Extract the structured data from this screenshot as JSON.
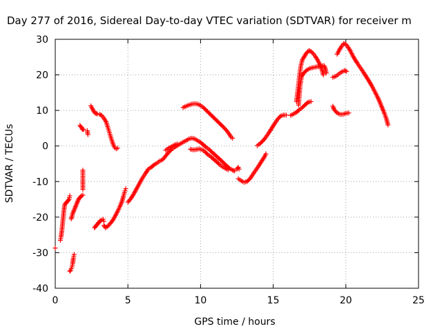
{
  "chart_data": {
    "type": "scatter",
    "title": "Day 277 of 2016, Sidereal Day-to-day VTEC variation (SDTVAR) for receiver m",
    "xlabel": "GPS time / hours",
    "ylabel": "SDTVAR / TECUs",
    "xlim": [
      0,
      25
    ],
    "ylim": [
      -40,
      30
    ],
    "xticks": [
      "0",
      "5",
      "10",
      "15",
      "20",
      "25"
    ],
    "yticks": [
      "-40",
      "-30",
      "-20",
      "-10",
      "0",
      "10",
      "20",
      "30"
    ],
    "grid": true,
    "marker": "plus",
    "color": "#ff0000",
    "segments": [
      [
        [
          0.0,
          -28.7
        ]
      ],
      [
        [
          0.35,
          -26.5
        ],
        [
          0.4,
          -25.5
        ],
        [
          0.45,
          -24
        ],
        [
          0.5,
          -22
        ],
        [
          0.55,
          -20
        ],
        [
          0.6,
          -18
        ],
        [
          0.65,
          -16.5
        ],
        [
          0.75,
          -16
        ],
        [
          0.85,
          -15.5
        ],
        [
          0.95,
          -15
        ],
        [
          1.0,
          -14
        ]
      ],
      [
        [
          1.0,
          -35.2
        ],
        [
          1.05,
          -35
        ],
        [
          1.1,
          -34.5
        ],
        [
          1.15,
          -34
        ],
        [
          1.2,
          -33
        ],
        [
          1.25,
          -31.5
        ],
        [
          1.3,
          -30.5
        ]
      ],
      [
        [
          1.1,
          -20.5
        ],
        [
          1.15,
          -19.8
        ],
        [
          1.2,
          -19
        ],
        [
          1.3,
          -18
        ],
        [
          1.4,
          -17
        ],
        [
          1.5,
          -16
        ],
        [
          1.6,
          -15
        ],
        [
          1.7,
          -14.5
        ],
        [
          1.8,
          -14
        ],
        [
          1.9,
          -13.8
        ]
      ],
      [
        [
          1.9,
          -12.2
        ],
        [
          1.9,
          -9.8
        ],
        [
          1.9,
          -6.8
        ]
      ],
      [
        [
          1.7,
          5.8
        ],
        [
          1.75,
          5.5
        ],
        [
          1.8,
          5.2
        ],
        [
          1.85,
          4.8
        ],
        [
          1.9,
          4.6
        ],
        [
          1.95,
          4.7
        ]
      ],
      [
        [
          2.2,
          4.3
        ],
        [
          2.25,
          3.2
        ]
      ],
      [
        [
          2.45,
          11.3
        ],
        [
          2.55,
          10.5
        ],
        [
          2.65,
          9.8
        ],
        [
          2.75,
          9.2
        ],
        [
          2.9,
          9.0
        ],
        [
          3.05,
          8.9
        ],
        [
          3.2,
          8.6
        ],
        [
          3.35,
          7.8
        ],
        [
          3.5,
          6.8
        ],
        [
          3.6,
          5.5
        ],
        [
          3.7,
          4.2
        ],
        [
          3.8,
          2.8
        ],
        [
          3.9,
          1.5
        ],
        [
          4.0,
          0.3
        ],
        [
          4.1,
          -0.5
        ],
        [
          4.2,
          -0.8
        ],
        [
          4.3,
          -0.6
        ]
      ],
      [
        [
          2.7,
          -23
        ],
        [
          2.8,
          -22.5
        ],
        [
          2.9,
          -22
        ],
        [
          3.0,
          -21.5
        ],
        [
          3.1,
          -21
        ],
        [
          3.2,
          -20.8
        ],
        [
          3.3,
          -20.6
        ],
        [
          3.35,
          -21.2
        ]
      ],
      [
        [
          3.35,
          -22.3
        ],
        [
          3.45,
          -23
        ],
        [
          3.55,
          -22.8
        ],
        [
          3.7,
          -22.2
        ],
        [
          3.85,
          -21.5
        ],
        [
          4.0,
          -20.6
        ],
        [
          4.15,
          -19.5
        ],
        [
          4.3,
          -18.3
        ],
        [
          4.45,
          -17
        ],
        [
          4.6,
          -15.5
        ],
        [
          4.7,
          -14
        ],
        [
          4.8,
          -12.6
        ],
        [
          4.85,
          -12
        ]
      ],
      [
        [
          5.0,
          -15.8
        ],
        [
          5.2,
          -14.8
        ],
        [
          5.4,
          -13.5
        ],
        [
          5.6,
          -12
        ],
        [
          5.8,
          -10.5
        ],
        [
          6.0,
          -9
        ],
        [
          6.2,
          -7.8
        ],
        [
          6.4,
          -6.5
        ],
        [
          6.6,
          -6
        ],
        [
          6.8,
          -5.3
        ],
        [
          7.0,
          -4.8
        ],
        [
          7.2,
          -4.2
        ],
        [
          7.4,
          -3.8
        ],
        [
          7.6,
          -2.8
        ],
        [
          7.8,
          -1.8
        ],
        [
          8.0,
          -1.0
        ],
        [
          8.2,
          -0.4
        ],
        [
          8.4,
          0.1
        ],
        [
          8.6,
          0.6
        ],
        [
          8.8,
          1.1
        ],
        [
          9.0,
          1.5
        ],
        [
          9.2,
          2.0
        ],
        [
          9.4,
          2.2
        ],
        [
          9.6,
          2.0
        ],
        [
          9.8,
          1.5
        ],
        [
          10.0,
          1.0
        ],
        [
          10.2,
          0.3
        ],
        [
          10.4,
          -0.4
        ],
        [
          10.6,
          -1.0
        ],
        [
          10.8,
          -1.8
        ],
        [
          11.0,
          -2.5
        ],
        [
          11.2,
          -3.3
        ],
        [
          11.4,
          -4.0
        ],
        [
          11.6,
          -4.8
        ],
        [
          11.8,
          -5.6
        ],
        [
          12.0,
          -6.3
        ],
        [
          12.2,
          -6.8
        ],
        [
          12.35,
          -7.0
        ]
      ],
      [
        [
          7.6,
          -1.2
        ],
        [
          7.8,
          -0.6
        ],
        [
          8.0,
          -0.2
        ],
        [
          8.2,
          0.3
        ],
        [
          8.4,
          0.6
        ]
      ],
      [
        [
          9.3,
          -0.9
        ],
        [
          9.5,
          -1.1
        ],
        [
          9.7,
          -1.0
        ],
        [
          9.9,
          -0.8
        ],
        [
          10.1,
          -1.0
        ],
        [
          10.3,
          -1.6
        ],
        [
          10.5,
          -2.4
        ],
        [
          10.7,
          -3.0
        ],
        [
          10.9,
          -3.7
        ],
        [
          11.1,
          -4.4
        ],
        [
          11.3,
          -5.2
        ],
        [
          11.5,
          -5.8
        ],
        [
          11.7,
          -6.3
        ],
        [
          11.9,
          -6.7
        ]
      ],
      [
        [
          12.5,
          -6.5
        ],
        [
          12.6,
          -6.0
        ],
        [
          12.65,
          -6.5
        ]
      ],
      [
        [
          8.8,
          10.8
        ],
        [
          9.0,
          11.2
        ],
        [
          9.2,
          11.5
        ],
        [
          9.4,
          11.8
        ],
        [
          9.6,
          11.9
        ],
        [
          9.8,
          11.8
        ],
        [
          10.0,
          11.4
        ],
        [
          10.2,
          10.8
        ],
        [
          10.4,
          10.0
        ],
        [
          10.6,
          9.2
        ],
        [
          10.8,
          8.4
        ],
        [
          11.0,
          7.6
        ],
        [
          11.2,
          6.8
        ],
        [
          11.4,
          6.0
        ],
        [
          11.6,
          5.2
        ],
        [
          11.8,
          4.3
        ],
        [
          12.0,
          3.2
        ],
        [
          12.1,
          2.5
        ],
        [
          12.2,
          2.2
        ]
      ],
      [
        [
          12.6,
          -9.2
        ],
        [
          12.8,
          -9.8
        ],
        [
          13.0,
          -10.2
        ],
        [
          13.2,
          -10.0
        ],
        [
          13.4,
          -9.2
        ],
        [
          13.6,
          -8.0
        ],
        [
          13.8,
          -6.8
        ],
        [
          14.0,
          -5.6
        ],
        [
          14.2,
          -4.3
        ],
        [
          14.4,
          -3.0
        ],
        [
          14.5,
          -2.2
        ]
      ],
      [
        [
          13.9,
          0.1
        ],
        [
          14.1,
          0.7
        ],
        [
          14.3,
          1.5
        ],
        [
          14.5,
          2.5
        ],
        [
          14.7,
          3.7
        ],
        [
          14.9,
          5.0
        ],
        [
          15.1,
          6.3
        ],
        [
          15.3,
          7.5
        ],
        [
          15.5,
          8.4
        ],
        [
          15.7,
          8.7
        ],
        [
          15.9,
          8.7
        ]
      ],
      [
        [
          16.2,
          8.6
        ],
        [
          16.4,
          9.0
        ],
        [
          16.6,
          9.5
        ],
        [
          16.8,
          10.2
        ],
        [
          17.0,
          10.8
        ],
        [
          17.2,
          11.6
        ],
        [
          17.4,
          12.3
        ],
        [
          17.6,
          12.5
        ]
      ],
      [
        [
          16.6,
          12.5
        ],
        [
          16.7,
          16
        ],
        [
          16.8,
          19.5
        ],
        [
          16.9,
          22.5
        ],
        [
          17.0,
          24.2
        ],
        [
          17.15,
          25.2
        ],
        [
          17.3,
          26.2
        ],
        [
          17.45,
          26.8
        ],
        [
          17.6,
          26.6
        ],
        [
          17.75,
          26.0
        ],
        [
          17.9,
          25.2
        ],
        [
          18.05,
          24.2
        ],
        [
          18.2,
          23.0
        ],
        [
          18.35,
          21.5
        ],
        [
          18.45,
          20.0
        ]
      ],
      [
        [
          16.75,
          11.5
        ],
        [
          16.8,
          14.5
        ],
        [
          16.85,
          17.0
        ],
        [
          16.95,
          19.5
        ],
        [
          17.1,
          20.5
        ],
        [
          17.3,
          21.3
        ],
        [
          17.5,
          21.8
        ],
        [
          17.7,
          22.0
        ],
        [
          17.9,
          22.2
        ],
        [
          18.1,
          22.3
        ],
        [
          18.3,
          22.5
        ],
        [
          18.5,
          22.6
        ],
        [
          18.6,
          21.6
        ],
        [
          18.65,
          20.5
        ]
      ],
      [
        [
          19.1,
          11.2
        ],
        [
          19.2,
          10.2
        ],
        [
          19.4,
          9.3
        ],
        [
          19.6,
          8.9
        ],
        [
          19.8,
          8.9
        ],
        [
          20.0,
          9.2
        ],
        [
          20.2,
          9.3
        ]
      ],
      [
        [
          19.1,
          19.3
        ],
        [
          19.3,
          19.6
        ],
        [
          19.5,
          20.2
        ],
        [
          19.7,
          20.8
        ],
        [
          19.9,
          21.2
        ],
        [
          20.05,
          21.0
        ]
      ],
      [
        [
          19.4,
          25.8
        ],
        [
          19.55,
          27.0
        ],
        [
          19.7,
          28.0
        ],
        [
          19.85,
          28.8
        ],
        [
          20.0,
          28.6
        ],
        [
          20.15,
          27.8
        ],
        [
          20.3,
          26.8
        ],
        [
          20.45,
          25.6
        ],
        [
          20.6,
          24.5
        ],
        [
          20.8,
          23.2
        ],
        [
          21.0,
          22.0
        ],
        [
          21.2,
          20.8
        ],
        [
          21.4,
          19.5
        ],
        [
          21.6,
          18.2
        ],
        [
          21.8,
          16.8
        ],
        [
          22.0,
          15.2
        ],
        [
          22.2,
          13.6
        ],
        [
          22.35,
          12.2
        ],
        [
          22.5,
          10.7
        ],
        [
          22.65,
          9.2
        ],
        [
          22.8,
          7.5
        ],
        [
          22.9,
          5.9
        ]
      ]
    ]
  }
}
